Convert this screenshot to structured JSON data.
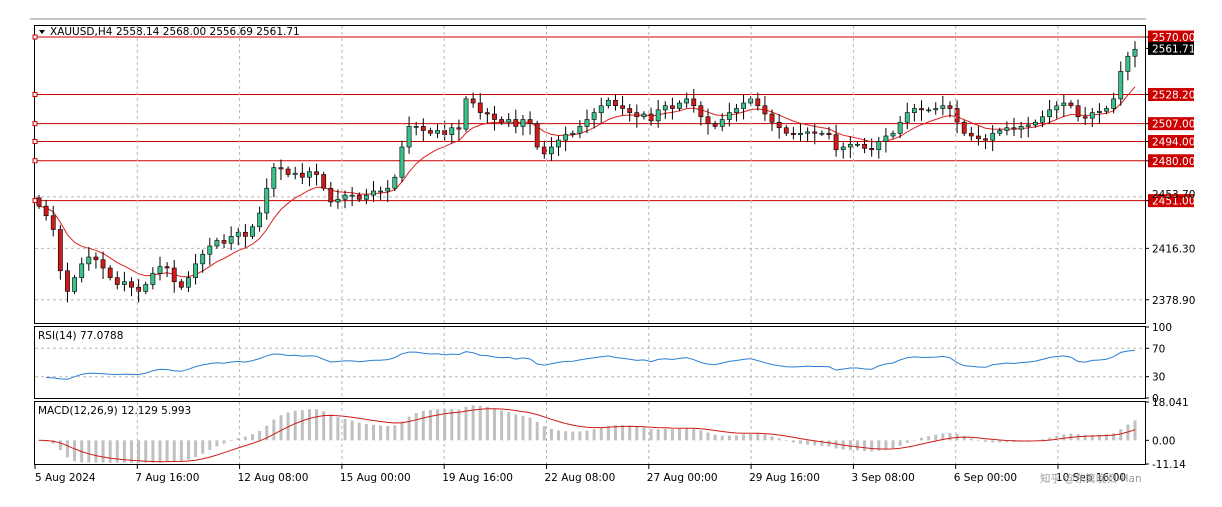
{
  "chart_data": [
    {
      "type": "candlestick",
      "title": "XAUUSD,H4",
      "ohlc_label": "2558.14 2568.00 2556.69 2561.71",
      "last_price": 2561.71,
      "price_labels": [
        "2570.00",
        "2561.71",
        "2528.20",
        "2507.00",
        "2494.00",
        "2480.00",
        "2451.00",
        "2416.30",
        "2378.90"
      ],
      "hidden_tick_label": "2453.70",
      "ylim": [
        2362,
        2578
      ],
      "grid_y": [
        2570.0,
        2528.2,
        2494.0,
        2453.7,
        2416.3,
        2378.9
      ],
      "horizontal_levels": [
        2570.0,
        2528.2,
        2507.0,
        2494.0,
        2480.0,
        2451.0
      ],
      "x_tick_labels": [
        "5 Aug 2024",
        "7 Aug 16:00",
        "12 Aug 08:00",
        "15 Aug 00:00",
        "19 Aug 16:00",
        "22 Aug 08:00",
        "27 Aug 00:00",
        "29 Aug 16:00",
        "3 Sep 08:00",
        "6 Sep 00:00",
        "10 Sep 16:00"
      ],
      "moving_average_color": "#e02020",
      "up_color": "#3cc08a",
      "down_color": "#d01a1a",
      "level_color": "#cc0000",
      "price_path": [
        [
          0,
          2447
        ],
        [
          1,
          2440
        ],
        [
          2,
          2430
        ],
        [
          3,
          2400
        ],
        [
          4,
          2385
        ],
        [
          5,
          2395
        ],
        [
          6,
          2405
        ],
        [
          7,
          2410
        ],
        [
          8,
          2408
        ],
        [
          9,
          2402
        ],
        [
          10,
          2395
        ],
        [
          11,
          2390
        ],
        [
          12,
          2392
        ],
        [
          13,
          2388
        ],
        [
          14,
          2385
        ],
        [
          15,
          2390
        ],
        [
          16,
          2398
        ],
        [
          17,
          2403
        ],
        [
          18,
          2402
        ],
        [
          19,
          2392
        ],
        [
          20,
          2388
        ],
        [
          21,
          2395
        ],
        [
          22,
          2405
        ],
        [
          23,
          2412
        ],
        [
          24,
          2418
        ],
        [
          25,
          2422
        ],
        [
          26,
          2420
        ],
        [
          27,
          2425
        ],
        [
          28,
          2428
        ],
        [
          29,
          2425
        ],
        [
          30,
          2432
        ],
        [
          31,
          2442
        ],
        [
          32,
          2460
        ],
        [
          33,
          2475
        ],
        [
          34,
          2474
        ],
        [
          35,
          2470
        ],
        [
          36,
          2471
        ],
        [
          37,
          2468
        ],
        [
          38,
          2472
        ],
        [
          39,
          2470
        ],
        [
          40,
          2460
        ],
        [
          41,
          2450
        ],
        [
          42,
          2452
        ],
        [
          43,
          2455
        ],
        [
          44,
          2455
        ],
        [
          45,
          2452
        ],
        [
          46,
          2455
        ],
        [
          47,
          2458
        ],
        [
          48,
          2458
        ],
        [
          49,
          2460
        ],
        [
          50,
          2468
        ],
        [
          51,
          2490
        ],
        [
          52,
          2505
        ],
        [
          53,
          2505
        ],
        [
          54,
          2502
        ],
        [
          55,
          2500
        ],
        [
          56,
          2502
        ],
        [
          57,
          2499
        ],
        [
          58,
          2504
        ],
        [
          59,
          2503
        ],
        [
          60,
          2525
        ],
        [
          61,
          2522
        ],
        [
          62,
          2515
        ],
        [
          63,
          2514
        ],
        [
          64,
          2510
        ],
        [
          65,
          2508
        ],
        [
          66,
          2510
        ],
        [
          67,
          2505
        ],
        [
          68,
          2510
        ],
        [
          69,
          2507
        ],
        [
          70,
          2490
        ],
        [
          71,
          2485
        ],
        [
          72,
          2490
        ],
        [
          73,
          2495
        ],
        [
          74,
          2499
        ],
        [
          75,
          2500
        ],
        [
          76,
          2505
        ],
        [
          77,
          2510
        ],
        [
          78,
          2515
        ],
        [
          79,
          2520
        ],
        [
          80,
          2524
        ],
        [
          81,
          2520
        ],
        [
          82,
          2518
        ],
        [
          83,
          2515
        ],
        [
          84,
          2512
        ],
        [
          85,
          2514
        ],
        [
          86,
          2509
        ],
        [
          87,
          2517
        ],
        [
          88,
          2520
        ],
        [
          89,
          2518
        ],
        [
          90,
          2522
        ],
        [
          91,
          2525
        ],
        [
          92,
          2520
        ],
        [
          93,
          2512
        ],
        [
          94,
          2507
        ],
        [
          95,
          2505
        ],
        [
          96,
          2510
        ],
        [
          97,
          2515
        ],
        [
          98,
          2518
        ],
        [
          99,
          2522
        ],
        [
          100,
          2525
        ],
        [
          101,
          2520
        ],
        [
          102,
          2514
        ],
        [
          103,
          2508
        ],
        [
          104,
          2504
        ],
        [
          105,
          2500
        ],
        [
          106,
          2499
        ],
        [
          107,
          2500
        ],
        [
          108,
          2501
        ],
        [
          109,
          2500
        ],
        [
          110,
          2500
        ],
        [
          111,
          2499
        ],
        [
          112,
          2488
        ],
        [
          113,
          2490
        ],
        [
          114,
          2492
        ],
        [
          115,
          2492
        ],
        [
          116,
          2489
        ],
        [
          117,
          2488
        ],
        [
          118,
          2494
        ],
        [
          119,
          2498
        ],
        [
          120,
          2500
        ],
        [
          121,
          2508
        ],
        [
          122,
          2515
        ],
        [
          123,
          2518
        ],
        [
          124,
          2517
        ],
        [
          125,
          2517
        ],
        [
          126,
          2518
        ],
        [
          127,
          2520
        ],
        [
          128,
          2518
        ],
        [
          129,
          2508
        ],
        [
          130,
          2500
        ],
        [
          131,
          2498
        ],
        [
          132,
          2496
        ],
        [
          133,
          2495
        ],
        [
          134,
          2500
        ],
        [
          135,
          2502
        ],
        [
          136,
          2504
        ],
        [
          137,
          2503
        ],
        [
          138,
          2505
        ],
        [
          139,
          2506
        ],
        [
          140,
          2508
        ],
        [
          141,
          2512
        ],
        [
          142,
          2517
        ],
        [
          143,
          2520
        ],
        [
          144,
          2522
        ],
        [
          145,
          2520
        ],
        [
          146,
          2512
        ],
        [
          147,
          2511
        ],
        [
          148,
          2515
        ],
        [
          149,
          2516
        ],
        [
          150,
          2518
        ],
        [
          151,
          2525
        ],
        [
          152,
          2545
        ],
        [
          153,
          2556
        ],
        [
          154,
          2561
        ]
      ]
    },
    {
      "type": "line",
      "title": "RSI(14) 77.0788",
      "line_color": "#2a7fd4",
      "tick_labels": [
        "100",
        "70",
        "30",
        "0"
      ],
      "levels": [
        70,
        30
      ],
      "ylim": [
        0,
        100
      ],
      "last_value": 77.0788
    },
    {
      "type": "bar",
      "title": "MACD(12,26,9) 12.129 5.993",
      "tick_labels": [
        "18.041",
        "0.00",
        "-11.14"
      ],
      "ylim": [
        -11.14,
        18.041
      ],
      "last_macd": 12.129,
      "last_signal": 5.993,
      "histogram_color": "#c0c0c0",
      "signal_color": "#d01a1a"
    }
  ],
  "watermark": "知乎 @东篱晚归-Han"
}
